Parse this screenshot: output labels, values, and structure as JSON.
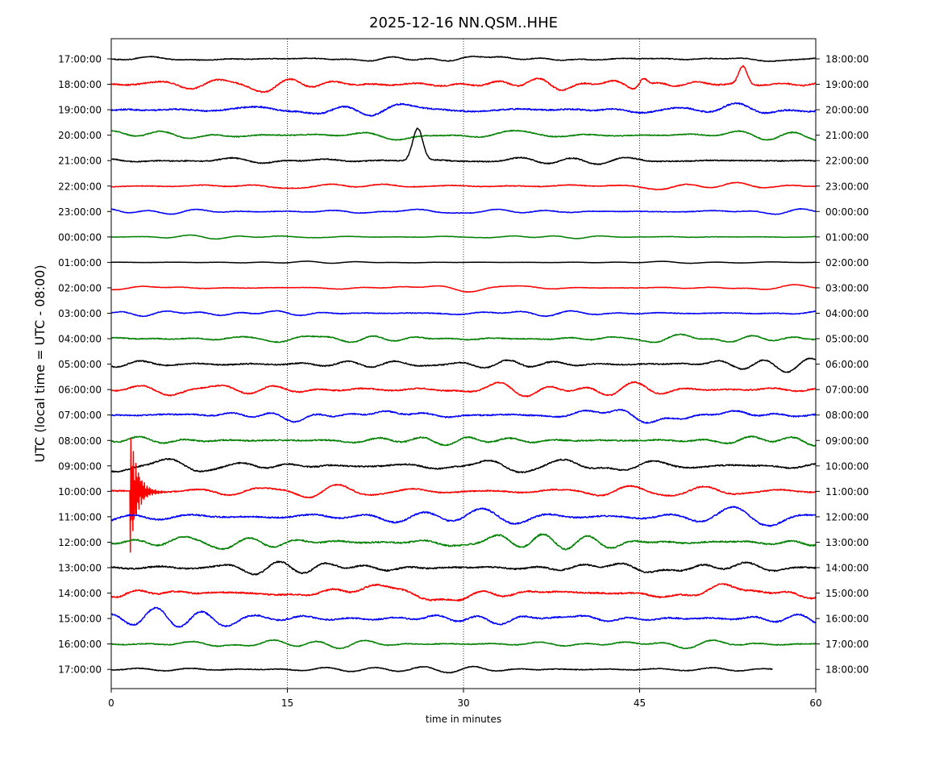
{
  "chart_data": {
    "type": "line",
    "title": "2025-12-16 NN.QSM..HHE",
    "xlabel": "time in minutes",
    "ylabel": "UTC (local time = UTC - 08:00)",
    "xlim": [
      0,
      60
    ],
    "x_ticks": [
      "0",
      "15",
      "30",
      "45",
      "60"
    ],
    "x_tick_values": [
      0,
      15,
      30,
      45,
      60
    ],
    "grid": "vertical dotted lines at 15, 30, 45",
    "trace_colors": [
      "#000000",
      "#ff0000",
      "#0000ff",
      "#008000"
    ],
    "rows": [
      {
        "left": "17:00:00",
        "right": "18:00:00",
        "color": "#000000",
        "amp": 0.8,
        "end": 60
      },
      {
        "left": "18:00:00",
        "right": "19:00:00",
        "color": "#ff0000",
        "amp": 1.4,
        "end": 60,
        "events": [
          {
            "t": 53.8,
            "a": -2.2,
            "w": 0.5
          },
          {
            "t": 45.3,
            "a": -1.2,
            "w": 0.5
          }
        ]
      },
      {
        "left": "19:00:00",
        "right": "20:00:00",
        "color": "#0000ff",
        "amp": 1.5,
        "end": 60
      },
      {
        "left": "20:00:00",
        "right": "21:00:00",
        "color": "#008000",
        "amp": 1.0,
        "end": 60
      },
      {
        "left": "21:00:00",
        "right": "22:00:00",
        "color": "#000000",
        "amp": 1.1,
        "end": 60,
        "events": [
          {
            "t": 26.1,
            "a": -4.0,
            "w": 0.6
          }
        ]
      },
      {
        "left": "22:00:00",
        "right": "23:00:00",
        "color": "#ff0000",
        "amp": 0.8,
        "end": 60
      },
      {
        "left": "23:00:00",
        "right": "00:00:00",
        "color": "#0000ff",
        "amp": 0.7,
        "end": 60
      },
      {
        "left": "00:00:00",
        "right": "01:00:00",
        "color": "#008000",
        "amp": 0.4,
        "end": 60
      },
      {
        "left": "01:00:00",
        "right": "02:00:00",
        "color": "#000000",
        "amp": 0.2,
        "end": 60
      },
      {
        "left": "02:00:00",
        "right": "03:00:00",
        "color": "#ff0000",
        "amp": 0.5,
        "end": 60
      },
      {
        "left": "03:00:00",
        "right": "04:00:00",
        "color": "#0000ff",
        "amp": 0.8,
        "end": 60
      },
      {
        "left": "04:00:00",
        "right": "05:00:00",
        "color": "#008000",
        "amp": 1.0,
        "end": 60
      },
      {
        "left": "05:00:00",
        "right": "06:00:00",
        "color": "#000000",
        "amp": 1.2,
        "end": 60
      },
      {
        "left": "06:00:00",
        "right": "07:00:00",
        "color": "#ff0000",
        "amp": 1.3,
        "end": 60
      },
      {
        "left": "07:00:00",
        "right": "08:00:00",
        "color": "#0000ff",
        "amp": 1.3,
        "end": 60
      },
      {
        "left": "08:00:00",
        "right": "09:00:00",
        "color": "#008000",
        "amp": 1.4,
        "end": 60
      },
      {
        "left": "09:00:00",
        "right": "10:00:00",
        "color": "#000000",
        "amp": 1.4,
        "end": 60
      },
      {
        "left": "10:00:00",
        "right": "11:00:00",
        "color": "#ff0000",
        "amp": 1.3,
        "end": 60,
        "burst": {
          "t": 1.6,
          "amp": 8.0,
          "dur": 1.0
        }
      },
      {
        "left": "11:00:00",
        "right": "12:00:00",
        "color": "#0000ff",
        "amp": 1.5,
        "end": 60
      },
      {
        "left": "12:00:00",
        "right": "13:00:00",
        "color": "#008000",
        "amp": 1.5,
        "end": 60
      },
      {
        "left": "13:00:00",
        "right": "14:00:00",
        "color": "#000000",
        "amp": 1.5,
        "end": 60
      },
      {
        "left": "14:00:00",
        "right": "15:00:00",
        "color": "#ff0000",
        "amp": 1.6,
        "end": 60
      },
      {
        "left": "15:00:00",
        "right": "16:00:00",
        "color": "#0000ff",
        "amp": 1.5,
        "end": 60
      },
      {
        "left": "16:00:00",
        "right": "17:00:00",
        "color": "#008000",
        "amp": 0.9,
        "end": 60
      },
      {
        "left": "17:00:00",
        "right": "18:00:00",
        "color": "#000000",
        "amp": 0.8,
        "end": 56.3
      }
    ]
  }
}
